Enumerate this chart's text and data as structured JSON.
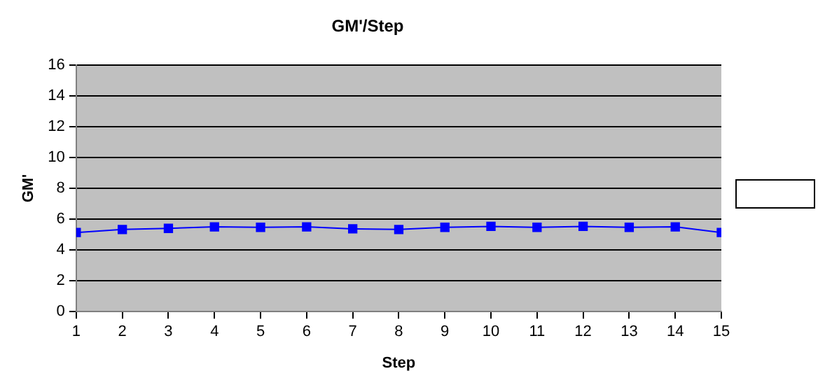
{
  "chart_data": {
    "type": "line",
    "title": "GM'/Step",
    "xlabel": "Step",
    "ylabel": "GM'",
    "x": [
      1,
      2,
      3,
      4,
      5,
      6,
      7,
      8,
      9,
      10,
      11,
      12,
      13,
      14,
      15
    ],
    "series": [
      {
        "color": "#0000ff",
        "values": [
          5.13,
          5.33,
          5.4,
          5.5,
          5.47,
          5.5,
          5.37,
          5.33,
          5.47,
          5.53,
          5.47,
          5.53,
          5.47,
          5.5,
          5.13
        ]
      }
    ],
    "xlim": [
      1,
      15
    ],
    "xticks": [
      1,
      2,
      3,
      4,
      5,
      6,
      7,
      8,
      9,
      10,
      11,
      12,
      13,
      14,
      15
    ],
    "ylim": [
      0,
      16
    ],
    "yticks": [
      0,
      2,
      4,
      6,
      8,
      10,
      12,
      14,
      16
    ],
    "grid": "y",
    "marker": "square",
    "line_style": "solid",
    "legend": false
  }
}
